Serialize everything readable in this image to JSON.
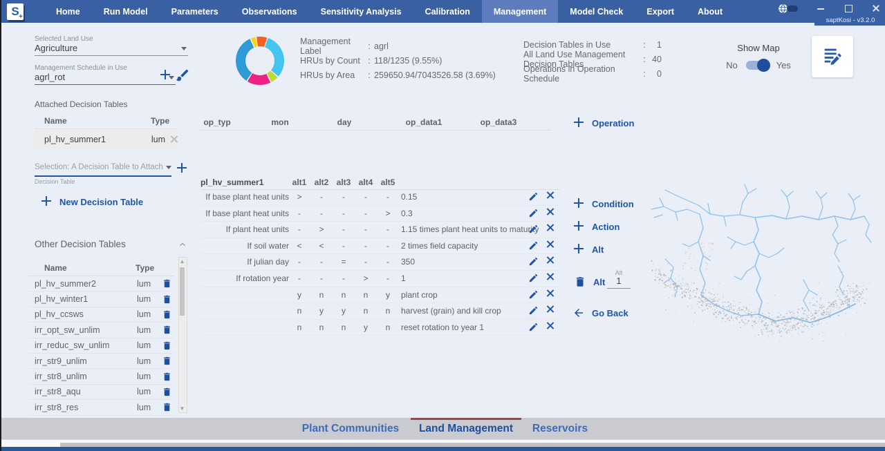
{
  "titlebar": {
    "logo_letter": "S",
    "logo_plus": "+",
    "version": "saptKosi - v3.2.0",
    "nav": [
      {
        "label": "Home",
        "active": false
      },
      {
        "label": "Run Model",
        "active": false
      },
      {
        "label": "Parameters",
        "active": false
      },
      {
        "label": "Observations",
        "active": false
      },
      {
        "label": "Sensitivity Analysis",
        "active": false
      },
      {
        "label": "Calibration",
        "active": false
      },
      {
        "label": "Management",
        "active": true
      },
      {
        "label": "Model Check",
        "active": false
      },
      {
        "label": "Export",
        "active": false
      },
      {
        "label": "About",
        "active": false
      }
    ]
  },
  "landuse_panel": {
    "selected_land_use_label": "Selected Land Use",
    "selected_land_use_value": "Agriculture",
    "schedule_label": "Management Schedule in Use",
    "schedule_value": "agrl_rot"
  },
  "summary": {
    "management_label_key": "Management Label",
    "management_label_value": "agrl",
    "hrus_count_key": "HRUs by Count",
    "hrus_count_value": "118/1235 (9.55%)",
    "hrus_area_key": "HRUs by Area",
    "hrus_area_value": "259650.94/7043526.58 (3.69%)",
    "dt_in_use_key": "Decision Tables in Use",
    "dt_in_use_value": "1",
    "all_dt_key": "All Land Use Management Decision Tables",
    "all_dt_value": "40",
    "ops_key": "Operations in Operation Schedule",
    "ops_value": "0",
    "colon": ":",
    "show_map_label": "Show Map",
    "show_map_no": "No",
    "show_map_yes": "Yes"
  },
  "chart_data": {
    "type": "donut",
    "title": "",
    "legend": "none",
    "segments": [
      {
        "color": "#F4611E",
        "percent": 7
      },
      {
        "color": "#45C4F0",
        "percent": 31
      },
      {
        "color": "#C3D832",
        "percent": 5
      },
      {
        "color": "#EC2384",
        "percent": 16
      },
      {
        "color": "#2E9BD6",
        "percent": 34
      },
      {
        "color": "#FFD60A",
        "percent": 3
      }
    ]
  },
  "attached": {
    "title": "Attached Decision Tables",
    "col_name": "Name",
    "col_type": "Type",
    "rows": [
      {
        "name": "pl_hv_summer1",
        "type": "lum"
      }
    ],
    "attach_placeholder": "Selection:  A Decision Table to Attach",
    "attach_caption": "Decision Table",
    "new_button": "New Decision Table"
  },
  "other_tables": {
    "title": "Other Decision Tables",
    "col_name": "Name",
    "col_type": "Type",
    "rows": [
      {
        "name": "pl_hv_summer2",
        "type": "lum"
      },
      {
        "name": "pl_hv_winter1",
        "type": "lum"
      },
      {
        "name": "pl_hv_ccsws",
        "type": "lum"
      },
      {
        "name": "irr_opt_sw_unlim",
        "type": "lum"
      },
      {
        "name": "irr_reduc_sw_unlim",
        "type": "lum"
      },
      {
        "name": "irr_str9_unlim",
        "type": "lum"
      },
      {
        "name": "irr_str8_unlim",
        "type": "lum"
      },
      {
        "name": "irr_str8_aqu",
        "type": "lum"
      },
      {
        "name": "irr_str8_res",
        "type": "lum"
      }
    ]
  },
  "operations": {
    "columns": [
      "op_typ",
      "mon",
      "day",
      "op_data1",
      "op_data3"
    ],
    "add_button": "Operation"
  },
  "decision_table": {
    "name": "pl_hv_summer1",
    "alt_columns": [
      "alt1",
      "alt2",
      "alt3",
      "alt4",
      "alt5"
    ],
    "rows": [
      {
        "label": "If base plant heat units",
        "alts": [
          ">",
          "-",
          "-",
          "-",
          "-"
        ],
        "value": "0.15"
      },
      {
        "label": "If base plant heat units",
        "alts": [
          "-",
          "-",
          "-",
          "-",
          ">"
        ],
        "value": "0.3"
      },
      {
        "label": "If plant heat units",
        "alts": [
          "-",
          ">",
          "-",
          "-",
          "-"
        ],
        "value": "1.15 times plant heat units to maturity"
      },
      {
        "label": "If soil water",
        "alts": [
          "<",
          "<",
          "-",
          "-",
          "-"
        ],
        "value": "2 times field capacity"
      },
      {
        "label": "If julian day",
        "alts": [
          "-",
          "-",
          "=",
          "-",
          "-"
        ],
        "value": "350"
      },
      {
        "label": "If rotation year",
        "alts": [
          "-",
          "-",
          "-",
          ">",
          "-"
        ],
        "value": "1"
      },
      {
        "label": "",
        "alts": [
          "y",
          "n",
          "n",
          "n",
          "y"
        ],
        "value": "plant crop"
      },
      {
        "label": "",
        "alts": [
          "n",
          "y",
          "y",
          "n",
          "n"
        ],
        "value": "harvest (grain) and kill crop"
      },
      {
        "label": "",
        "alts": [
          "n",
          "n",
          "n",
          "y",
          "n"
        ],
        "value": "reset rotation to year 1"
      }
    ],
    "actions": {
      "condition": "Condition",
      "action": "Action",
      "alt_add": "Alt",
      "alt_delete": "Alt",
      "alt_input_label": "Alt",
      "alt_input_value": "1",
      "go_back": "Go Back"
    }
  },
  "bottom_tabs": [
    {
      "label": "Plant Communities",
      "active": false
    },
    {
      "label": "Land Management",
      "active": true
    },
    {
      "label": "Reservoirs",
      "active": false
    }
  ],
  "colors": {
    "accent_blue": "#1F55A5",
    "titlebar_blue": "#3A60A4",
    "active_tab_red": "#A8423E",
    "river_blue": "#8EC1EC",
    "stipple_gray": "#A9A9A9"
  },
  "icons": {
    "add": "plus",
    "clear_schedule": "brush",
    "delete": "trash",
    "edit": "pencil",
    "remove": "x",
    "go_back": "left-arrow",
    "collapse": "chevron-up",
    "dropdown": "caret-down",
    "notes": "edit-note",
    "theme": "globe-toggle"
  }
}
